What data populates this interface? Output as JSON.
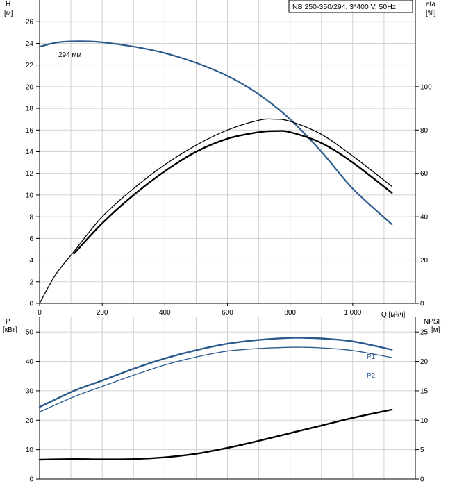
{
  "chart_data": [
    {
      "type": "line",
      "title": "NB 250-350/294, 3*400 V, 50Hz",
      "x_axis": {
        "label": "Q [м³/ч]",
        "range": [
          0,
          1200
        ],
        "ticks": [
          "0",
          "200",
          "400",
          "600",
          "800",
          "1 000"
        ]
      },
      "y_left": {
        "label": "H",
        "unit": "[м]",
        "range": [
          0,
          28
        ],
        "ticks": [
          "0",
          "2",
          "4",
          "6",
          "8",
          "10",
          "12",
          "14",
          "16",
          "18",
          "20",
          "22",
          "24",
          "26"
        ]
      },
      "y_right": {
        "label": "eta",
        "unit": "[%]",
        "range": [
          0,
          140
        ],
        "ticks": [
          "0",
          "20",
          "40",
          "60",
          "80",
          "100"
        ]
      },
      "grid": true,
      "annotation": "294 мм",
      "series": [
        {
          "key": "head",
          "axis": "left",
          "color": "#2a5a8e",
          "width": 2.2,
          "x": [
            0,
            60,
            130,
            200,
            300,
            400,
            500,
            600,
            700,
            800,
            900,
            1000,
            1125
          ],
          "y": [
            23.7,
            24.1,
            24.2,
            24.1,
            23.7,
            23.1,
            22.2,
            21.0,
            19.3,
            17.0,
            14.0,
            10.6,
            7.3
          ]
        },
        {
          "key": "eta-thin",
          "axis": "right",
          "color": "#000000",
          "width": 1.3,
          "x": [
            0,
            50,
            110,
            200,
            300,
            400,
            500,
            600,
            700,
            750,
            800,
            900,
            1000,
            1125
          ],
          "y": [
            0,
            13,
            24,
            40,
            53,
            64,
            73,
            80,
            84.5,
            85,
            84,
            78,
            68,
            54
          ]
        },
        {
          "key": "eta-bold",
          "axis": "right",
          "color": "#000000",
          "width": 2.4,
          "x": [
            110,
            200,
            300,
            400,
            500,
            600,
            700,
            750,
            800,
            900,
            1000,
            1125
          ],
          "y": [
            23,
            37,
            50,
            61,
            70,
            76,
            79,
            79.5,
            79,
            74,
            65,
            51
          ]
        }
      ]
    },
    {
      "type": "line",
      "x_axis": {
        "range": [
          0,
          1200
        ]
      },
      "y_left": {
        "label": "P",
        "unit": "[кВт]",
        "range": [
          0,
          55
        ],
        "ticks": [
          "0",
          "10",
          "20",
          "30",
          "40",
          "50"
        ]
      },
      "y_right": {
        "label": "NPSH",
        "unit": "[м]",
        "range": [
          0,
          27.5
        ],
        "ticks": [
          "0",
          "5",
          "10",
          "15",
          "20",
          "25"
        ]
      },
      "grid": true,
      "series": [
        {
          "key": "p1",
          "name": "P1",
          "axis": "left",
          "color": "#2a5a8e",
          "width": 2.4,
          "x": [
            0,
            110,
            200,
            300,
            400,
            500,
            600,
            700,
            800,
            850,
            900,
            1000,
            1125
          ],
          "y": [
            24.5,
            30,
            33.5,
            37.5,
            41,
            43.8,
            46,
            47.3,
            48,
            48,
            47.8,
            46.8,
            44
          ]
        },
        {
          "key": "p2",
          "name": "P2",
          "axis": "left",
          "color": "#2a5a8e",
          "width": 1.3,
          "x": [
            0,
            110,
            200,
            300,
            400,
            500,
            600,
            700,
            800,
            850,
            900,
            1000,
            1125
          ],
          "y": [
            22.8,
            28,
            31.5,
            35.3,
            38.8,
            41.5,
            43.5,
            44.4,
            44.8,
            44.8,
            44.6,
            43.7,
            41.3
          ]
        },
        {
          "key": "npsh",
          "axis": "right",
          "color": "#000000",
          "width": 2.4,
          "x": [
            0,
            110,
            200,
            300,
            400,
            500,
            600,
            700,
            800,
            900,
            1000,
            1125
          ],
          "y": [
            3.3,
            3.4,
            3.35,
            3.4,
            3.7,
            4.3,
            5.3,
            6.5,
            7.8,
            9.1,
            10.4,
            11.8
          ]
        }
      ]
    }
  ]
}
